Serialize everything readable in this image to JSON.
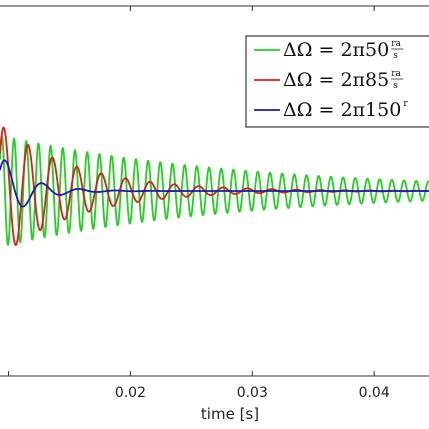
{
  "chart_data": {
    "type": "line",
    "title": "",
    "xlabel": "time [s]",
    "ylabel": "",
    "xlim": [
      0.0093,
      0.0445
    ],
    "ylim": [
      -1,
      1
    ],
    "x_ticks": [
      0.02,
      0.03,
      0.04
    ],
    "x_tick_labels": [
      "0.02",
      "0.03",
      "0.04"
    ],
    "grid": false,
    "legend_position": "top-right",
    "series": [
      {
        "legend_prefix": "ΔΩ = 2π50",
        "legend_unit_num": "ra",
        "legend_unit_den": "s",
        "color": "#1fd21f",
        "frequency_hz": 1000,
        "amplitude": 0.3,
        "decay_per_s": 50
      },
      {
        "legend_prefix": "ΔΩ = 2π85",
        "legend_unit_num": "ra",
        "legend_unit_den": "s",
        "color": "#d81e1e",
        "frequency_hz": 500,
        "amplitude": 0.36,
        "decay_per_s": 160
      },
      {
        "legend_prefix": "ΔΩ = 2π150",
        "legend_unit_num": "r",
        "legend_unit_den": "",
        "color": "#1a1ab4",
        "frequency_hz": 330,
        "amplitude": 0.2,
        "decay_per_s": 450
      }
    ]
  }
}
